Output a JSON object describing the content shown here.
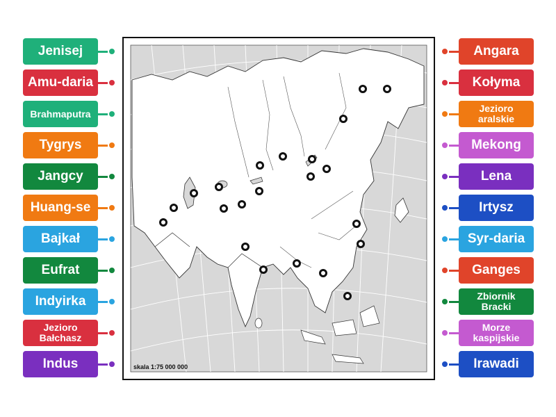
{
  "left_labels": [
    {
      "text": "Jenisej",
      "color": "#1fb07a"
    },
    {
      "text": "Amu-daria",
      "color": "#d9303f"
    },
    {
      "text": "Brahmaputra",
      "color": "#1fb07a"
    },
    {
      "text": "Tygrys",
      "color": "#f07a12"
    },
    {
      "text": "Jangcy",
      "color": "#12883e"
    },
    {
      "text": "Huang-se",
      "color": "#f07a12"
    },
    {
      "text": "Bajkał",
      "color": "#2aa4e0"
    },
    {
      "text": "Eufrat",
      "color": "#12883e"
    },
    {
      "text": "Indyirka",
      "color": "#2aa4e0"
    },
    {
      "text": "Jezioro Bałchasz",
      "color": "#d9303f"
    },
    {
      "text": "Indus",
      "color": "#7a2fbf"
    }
  ],
  "right_labels": [
    {
      "text": "Angara",
      "color": "#e0442a"
    },
    {
      "text": "Kołyma",
      "color": "#d9303f"
    },
    {
      "text": "Jezioro aralskie",
      "color": "#f07a12"
    },
    {
      "text": "Mekong",
      "color": "#c45ad0"
    },
    {
      "text": "Lena",
      "color": "#7a2fbf"
    },
    {
      "text": "Irtysz",
      "color": "#1d4fc4"
    },
    {
      "text": "Syr-daria",
      "color": "#2aa4e0"
    },
    {
      "text": "Ganges",
      "color": "#e0442a"
    },
    {
      "text": "Zbiornik Bracki",
      "color": "#12883e"
    },
    {
      "text": "Morze kaspijskie",
      "color": "#c45ad0"
    },
    {
      "text": "Irawadi",
      "color": "#1d4fc4"
    }
  ],
  "map": {
    "scale_text": "skala 1:75 000 000"
  }
}
